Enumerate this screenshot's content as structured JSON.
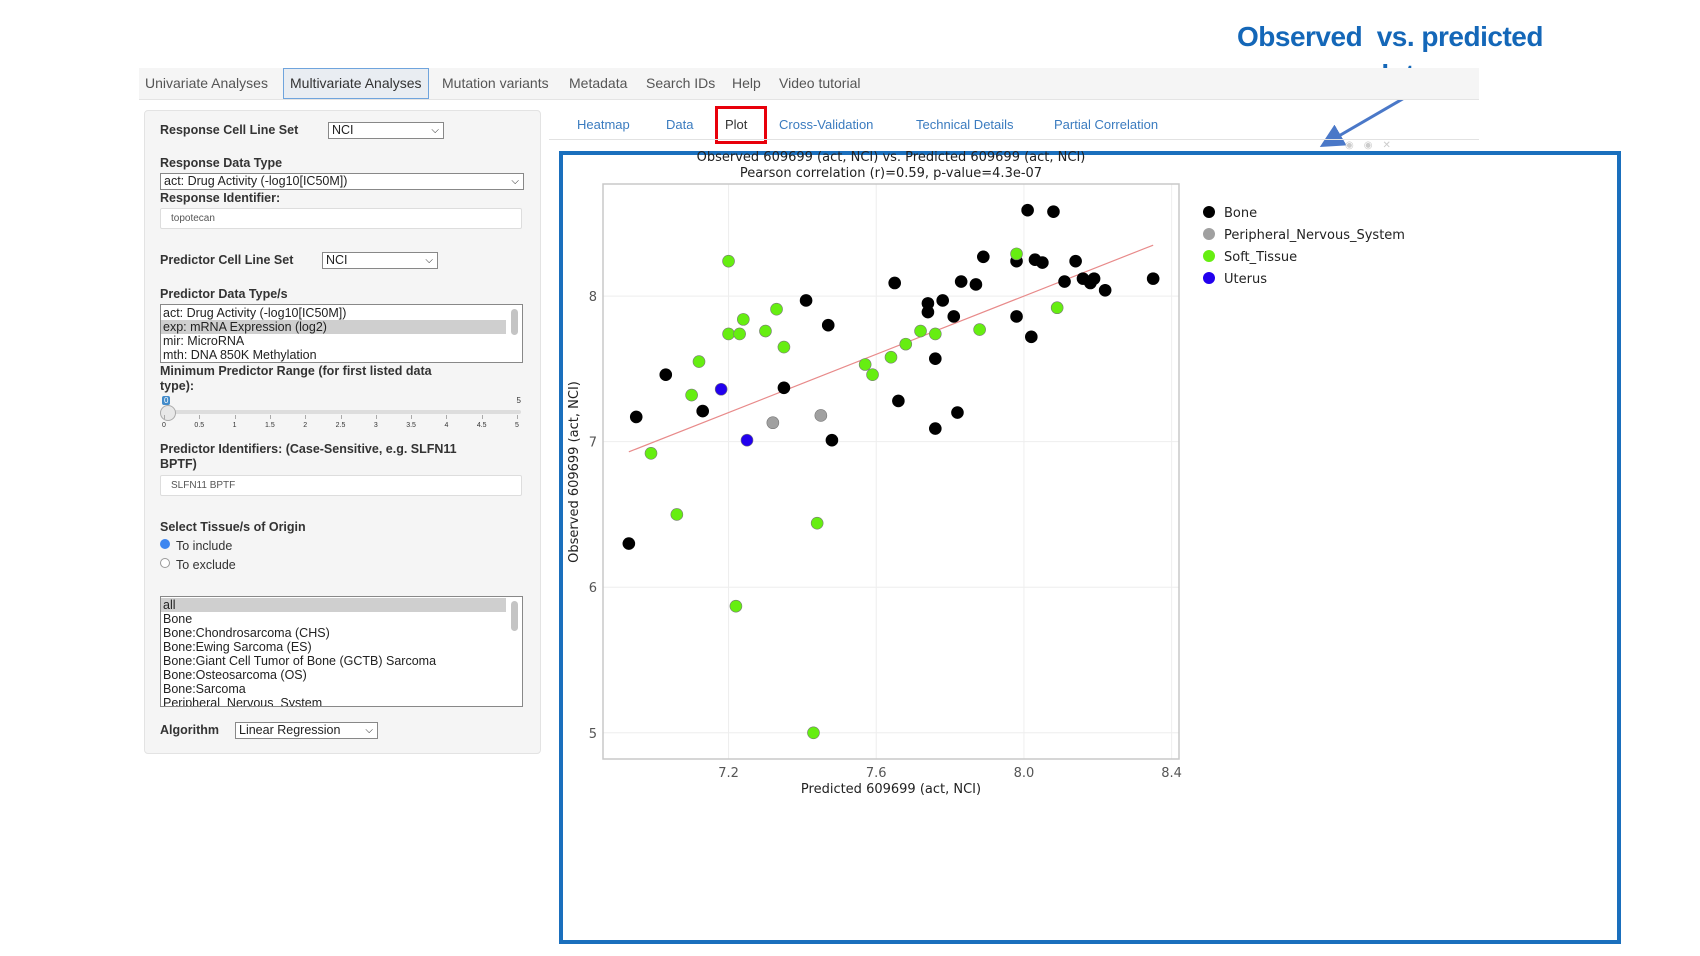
{
  "annotation": {
    "line1": "Observed  vs. predicted",
    "line2": "response plot"
  },
  "nav": {
    "items": [
      {
        "label": "Univariate Analyses"
      },
      {
        "label": "Multivariate Analyses",
        "active": true
      },
      {
        "label": "Mutation variants"
      },
      {
        "label": "Metadata"
      },
      {
        "label": "Search IDs"
      },
      {
        "label": "Help"
      },
      {
        "label": "Video tutorial"
      }
    ]
  },
  "sidebar": {
    "response_cell_line_set": {
      "label": "Response Cell Line Set",
      "value": "NCI"
    },
    "response_data_type": {
      "label": "Response Data Type",
      "value": "act: Drug Activity (-log10[IC50M])"
    },
    "response_identifier": {
      "label": "Response Identifier:",
      "value": "topotecan"
    },
    "predictor_cell_line_set": {
      "label": "Predictor Cell Line Set",
      "value": "NCI"
    },
    "predictor_data_types": {
      "label": "Predictor Data Type/s",
      "options": [
        {
          "label": "act: Drug Activity (-log10[IC50M])",
          "selected": false
        },
        {
          "label": "exp: mRNA Expression (log2)",
          "selected": true
        },
        {
          "label": "mir: MicroRNA",
          "selected": false
        },
        {
          "label": "mth: DNA 850K Methylation",
          "selected": false
        }
      ]
    },
    "min_range": {
      "label_line1": "Minimum Predictor Range (for first listed data",
      "label_line2": "type):",
      "value": "0",
      "max_label": "5",
      "value_num": 0,
      "min": 0,
      "max": 5,
      "ticks": [
        "0",
        "0.5",
        "1",
        "1.5",
        "2",
        "2.5",
        "3",
        "3.5",
        "4",
        "4.5",
        "5"
      ]
    },
    "predictor_identifiers": {
      "label_line1": "Predictor Identifiers: (Case-Sensitive, e.g. SLFN11",
      "label_line2": "BPTF)",
      "value": "SLFN11 BPTF"
    },
    "tissue": {
      "label": "Select Tissue/s of Origin",
      "radios": [
        {
          "label": "To include",
          "checked": true
        },
        {
          "label": "To exclude",
          "checked": false
        }
      ],
      "options": [
        {
          "label": "all",
          "selected": true
        },
        {
          "label": "Bone",
          "selected": false
        },
        {
          "label": "Bone:Chondrosarcoma (CHS)",
          "selected": false
        },
        {
          "label": "Bone:Ewing Sarcoma (ES)",
          "selected": false
        },
        {
          "label": "Bone:Giant Cell Tumor of Bone (GCTB) Sarcoma",
          "selected": false
        },
        {
          "label": "Bone:Osteosarcoma (OS)",
          "selected": false
        },
        {
          "label": "Bone:Sarcoma",
          "selected": false
        },
        {
          "label": "Peripheral_Nervous_System",
          "selected": false
        }
      ]
    },
    "algorithm": {
      "label": "Algorithm",
      "value": "Linear Regression"
    }
  },
  "tabs": [
    {
      "label": "Heatmap"
    },
    {
      "label": "Data"
    },
    {
      "label": "Plot",
      "active": true
    },
    {
      "label": "Cross-Validation"
    },
    {
      "label": "Technical Details"
    },
    {
      "label": "Partial Correlation"
    }
  ],
  "colors": {
    "accent": "#1a6fbd",
    "highlight": "#e8000b",
    "tab_link": "#3a7bbf",
    "fit_line": "#e88a8a"
  },
  "chart_data": {
    "type": "scatter",
    "title": "Observed 609699 (act, NCI) vs. Predicted 609699 (act, NCI)",
    "subtitle": "Pearson correlation (r)=0.59, p-value=4.3e-07",
    "xlabel": "Predicted 609699 (act, NCI)",
    "ylabel": "Observed 609699 (act, NCI)",
    "xlim": [
      6.86,
      8.42
    ],
    "ylim": [
      4.82,
      8.77
    ],
    "xticks": [
      "7.2",
      "7.6",
      "8.0",
      "8.4"
    ],
    "yticks": [
      "5",
      "6",
      "7",
      "8"
    ],
    "grid": true,
    "legend_position": "right",
    "fit_line": [
      [
        6.93,
        6.93
      ],
      [
        8.35,
        8.35
      ]
    ],
    "series": [
      {
        "name": "Bone",
        "color": "#000000",
        "points": [
          [
            8.01,
            8.59
          ],
          [
            8.08,
            8.58
          ],
          [
            7.89,
            8.27
          ],
          [
            7.98,
            8.24
          ],
          [
            8.03,
            8.25
          ],
          [
            8.05,
            8.23
          ],
          [
            8.14,
            8.24
          ],
          [
            7.65,
            8.09
          ],
          [
            7.83,
            8.1
          ],
          [
            7.87,
            8.08
          ],
          [
            8.11,
            8.1
          ],
          [
            8.16,
            8.12
          ],
          [
            8.19,
            8.12
          ],
          [
            8.18,
            8.09
          ],
          [
            8.22,
            8.04
          ],
          [
            8.35,
            8.12
          ],
          [
            7.41,
            7.97
          ],
          [
            7.74,
            7.95
          ],
          [
            7.78,
            7.97
          ],
          [
            7.74,
            7.89
          ],
          [
            7.81,
            7.86
          ],
          [
            7.98,
            7.86
          ],
          [
            8.02,
            7.72
          ],
          [
            7.47,
            7.8
          ],
          [
            7.76,
            7.57
          ],
          [
            7.03,
            7.46
          ],
          [
            7.35,
            7.37
          ],
          [
            6.95,
            7.17
          ],
          [
            7.13,
            7.21
          ],
          [
            7.66,
            7.28
          ],
          [
            7.82,
            7.2
          ],
          [
            7.76,
            7.09
          ],
          [
            7.48,
            7.01
          ],
          [
            6.93,
            6.3
          ]
        ]
      },
      {
        "name": "Peripheral_Nervous_System",
        "color": "#a0a0a0",
        "points": [
          [
            7.32,
            7.13
          ],
          [
            7.45,
            7.18
          ]
        ]
      },
      {
        "name": "Soft_Tissue",
        "color": "#66ee11",
        "points": [
          [
            7.2,
            8.24
          ],
          [
            7.98,
            8.29
          ],
          [
            7.33,
            7.91
          ],
          [
            7.24,
            7.84
          ],
          [
            7.2,
            7.74
          ],
          [
            7.23,
            7.74
          ],
          [
            7.3,
            7.76
          ],
          [
            7.35,
            7.65
          ],
          [
            7.12,
            7.55
          ],
          [
            7.1,
            7.32
          ],
          [
            8.09,
            7.92
          ],
          [
            7.88,
            7.77
          ],
          [
            7.72,
            7.76
          ],
          [
            7.76,
            7.74
          ],
          [
            7.68,
            7.67
          ],
          [
            7.64,
            7.58
          ],
          [
            7.57,
            7.53
          ],
          [
            7.59,
            7.46
          ],
          [
            6.99,
            6.92
          ],
          [
            7.06,
            6.5
          ],
          [
            7.44,
            6.44
          ],
          [
            7.22,
            5.87
          ],
          [
            7.43,
            5.0
          ]
        ]
      },
      {
        "name": "Uterus",
        "color": "#2200ee",
        "points": [
          [
            7.18,
            7.36
          ],
          [
            7.25,
            7.01
          ]
        ]
      }
    ]
  }
}
